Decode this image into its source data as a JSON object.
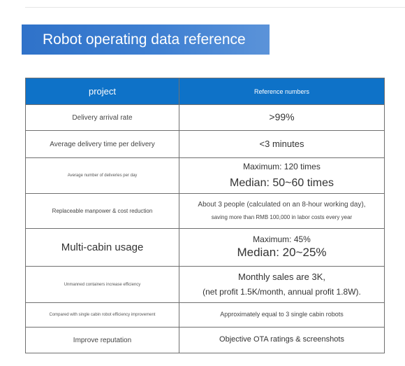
{
  "title": "Robot operating data reference",
  "header": {
    "col1": "project",
    "col2": "Reference numbers"
  },
  "rows": [
    {
      "project": "Delivery arrival rate",
      "value_lines": [
        ">99%"
      ]
    },
    {
      "project": "Average delivery time per delivery",
      "value_lines": [
        "<3 minutes"
      ]
    },
    {
      "project": "Average number of deliveries per day",
      "value_lines": [
        "Maximum: 120 times",
        "Median: 50~60 times"
      ]
    },
    {
      "project": "Replaceable manpower & cost reduction",
      "value_lines": [
        "About 3 people (calculated on an 8-hour working day),",
        "saving more than RMB 100,000 in labor costs every year"
      ]
    },
    {
      "project": "Multi-cabin usage",
      "value_lines": [
        "Maximum: 45%",
        "Median: 20~25%"
      ]
    },
    {
      "project": "Unmanned containers increase efficiency",
      "value_lines": [
        "Monthly sales are 3K,",
        "(net profit 1.5K/month, annual profit 1.8W)."
      ]
    },
    {
      "project": "Compared with single cabin robot efficiency improvement",
      "value_lines": [
        "Approximately equal to 3 single cabin robots"
      ]
    },
    {
      "project": "Improve reputation",
      "value_lines": [
        "Objective OTA ratings & screenshots"
      ]
    }
  ],
  "colors": {
    "header_bg": "#0e72c8",
    "banner_bg": "#3f80d2",
    "border": "#6f6f6f"
  }
}
